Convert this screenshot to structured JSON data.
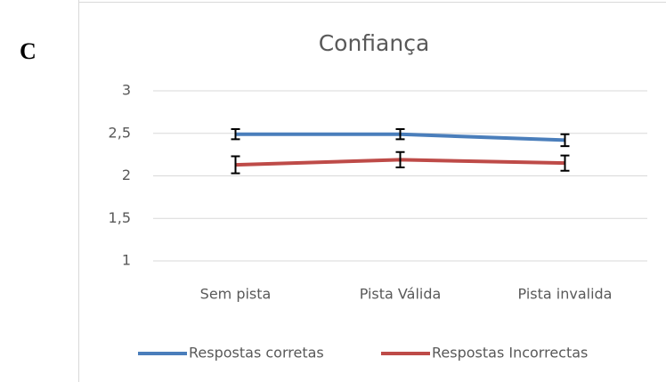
{
  "panel_label": "C",
  "chart_data": {
    "type": "line",
    "title": "Confiança",
    "categories": [
      "Sem pista",
      "Pista Válida",
      "Pista invalida"
    ],
    "series": [
      {
        "name": "Respostas corretas",
        "color": "#4a7ebb",
        "values": [
          2.49,
          2.49,
          2.42
        ],
        "errors": [
          0.06,
          0.06,
          0.07
        ]
      },
      {
        "name": "Respostas Incorrectas",
        "color": "#be4b48",
        "values": [
          2.13,
          2.19,
          2.15
        ],
        "errors": [
          0.1,
          0.09,
          0.09
        ]
      }
    ],
    "ylim": [
      1,
      3
    ],
    "yticks": [
      1,
      {
        "value": 1.5,
        "label": "1,5"
      },
      2,
      {
        "value": 2.5,
        "label": "2,5"
      },
      3
    ],
    "grid": true,
    "legend": "bottom"
  }
}
